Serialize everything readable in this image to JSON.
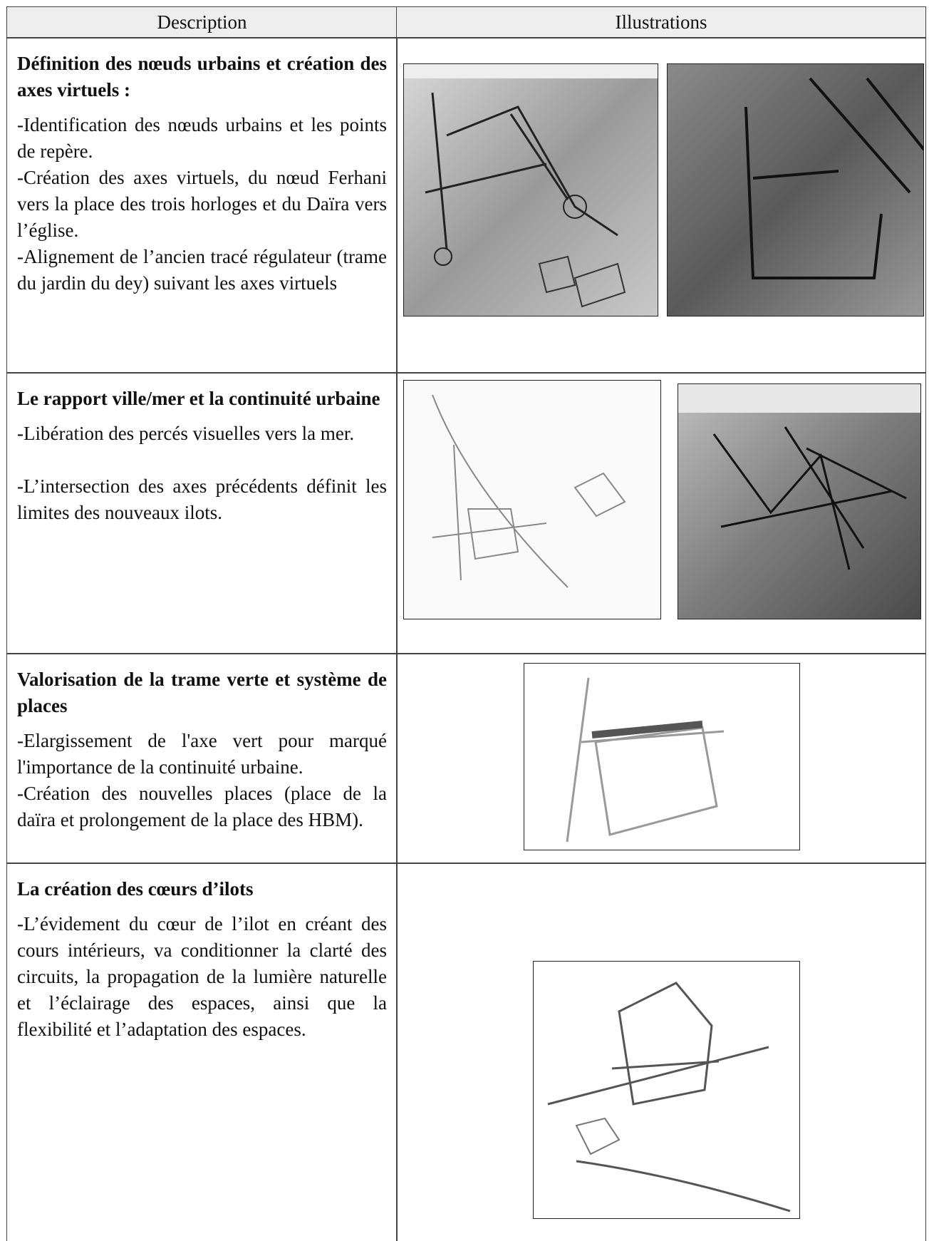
{
  "header": {
    "columns": [
      "Description",
      "Illustrations"
    ]
  },
  "rows": [
    {
      "title": "Définition des nœuds urbains et création des axes virtuels :",
      "paragraphs": [
        "-Identification des nœuds urbains et les points de repère.",
        "-Création  des axes virtuels, du nœud Ferhani vers la place des trois horloges et du Daïra vers l’église.",
        "-Alignement de l’ancien tracé régulateur (trame du jardin du dey) suivant  les axes virtuels"
      ]
    },
    {
      "title": "Le rapport ville/mer et la continuité urbaine",
      "paragraphs": [
        "-Libération des percés visuelles vers la mer.",
        "-L’intersection des axes précédents définit les limites des nouveaux ilots."
      ]
    },
    {
      "title": "Valorisation de la trame verte et système de places",
      "paragraphs": [
        "-Elargissement de l'axe vert pour marqué l'importance de la continuité urbaine.",
        "-Création des nouvelles places (place de la daïra et prolongement de la place des HBM)."
      ]
    },
    {
      "title": "La création des cœurs d’ilots",
      "paragraphs": [
        "-L’évidement du cœur de l’ilot en créant des cours intérieurs, va conditionner la clarté des circuits, la propagation de la lumière naturelle et l’éclairage des espaces, ainsi que la flexibilité et l’adaptation des espaces."
      ]
    }
  ]
}
